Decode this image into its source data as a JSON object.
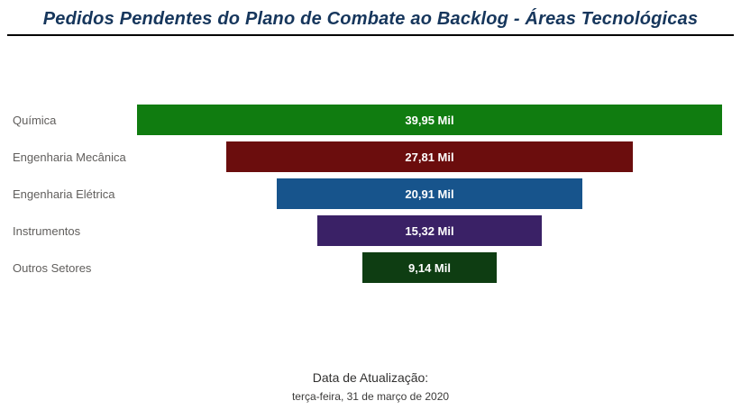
{
  "title": "Pedidos Pendentes do Plano de Combate ao Backlog - Áreas Tecnológicas",
  "footer": {
    "label": "Data de Atualização:",
    "date": "terça-feira, 31 de março de 2020"
  },
  "chart_data": {
    "type": "bar",
    "variant": "funnel",
    "orientation": "horizontal-centered",
    "categories": [
      "Química",
      "Engenharia Mecânica",
      "Engenharia Elétrica",
      "Instrumentos",
      "Outros Setores"
    ],
    "values": [
      39.95,
      27.81,
      20.91,
      15.32,
      9.14
    ],
    "value_labels": [
      "39,95 Mil",
      "27,81 Mil",
      "20,91 Mil",
      "15,32 Mil",
      "9,14 Mil"
    ],
    "unit": "Mil",
    "max_value": 39.95,
    "colors": [
      "#107c10",
      "#6b0d0d",
      "#17548c",
      "#3a2166",
      "#0e3d12"
    ],
    "title": "Pedidos Pendentes do Plano de Combate ao Backlog - Áreas Tecnológicas",
    "xlabel": "",
    "ylabel": "",
    "legend": "none",
    "grid": false
  }
}
